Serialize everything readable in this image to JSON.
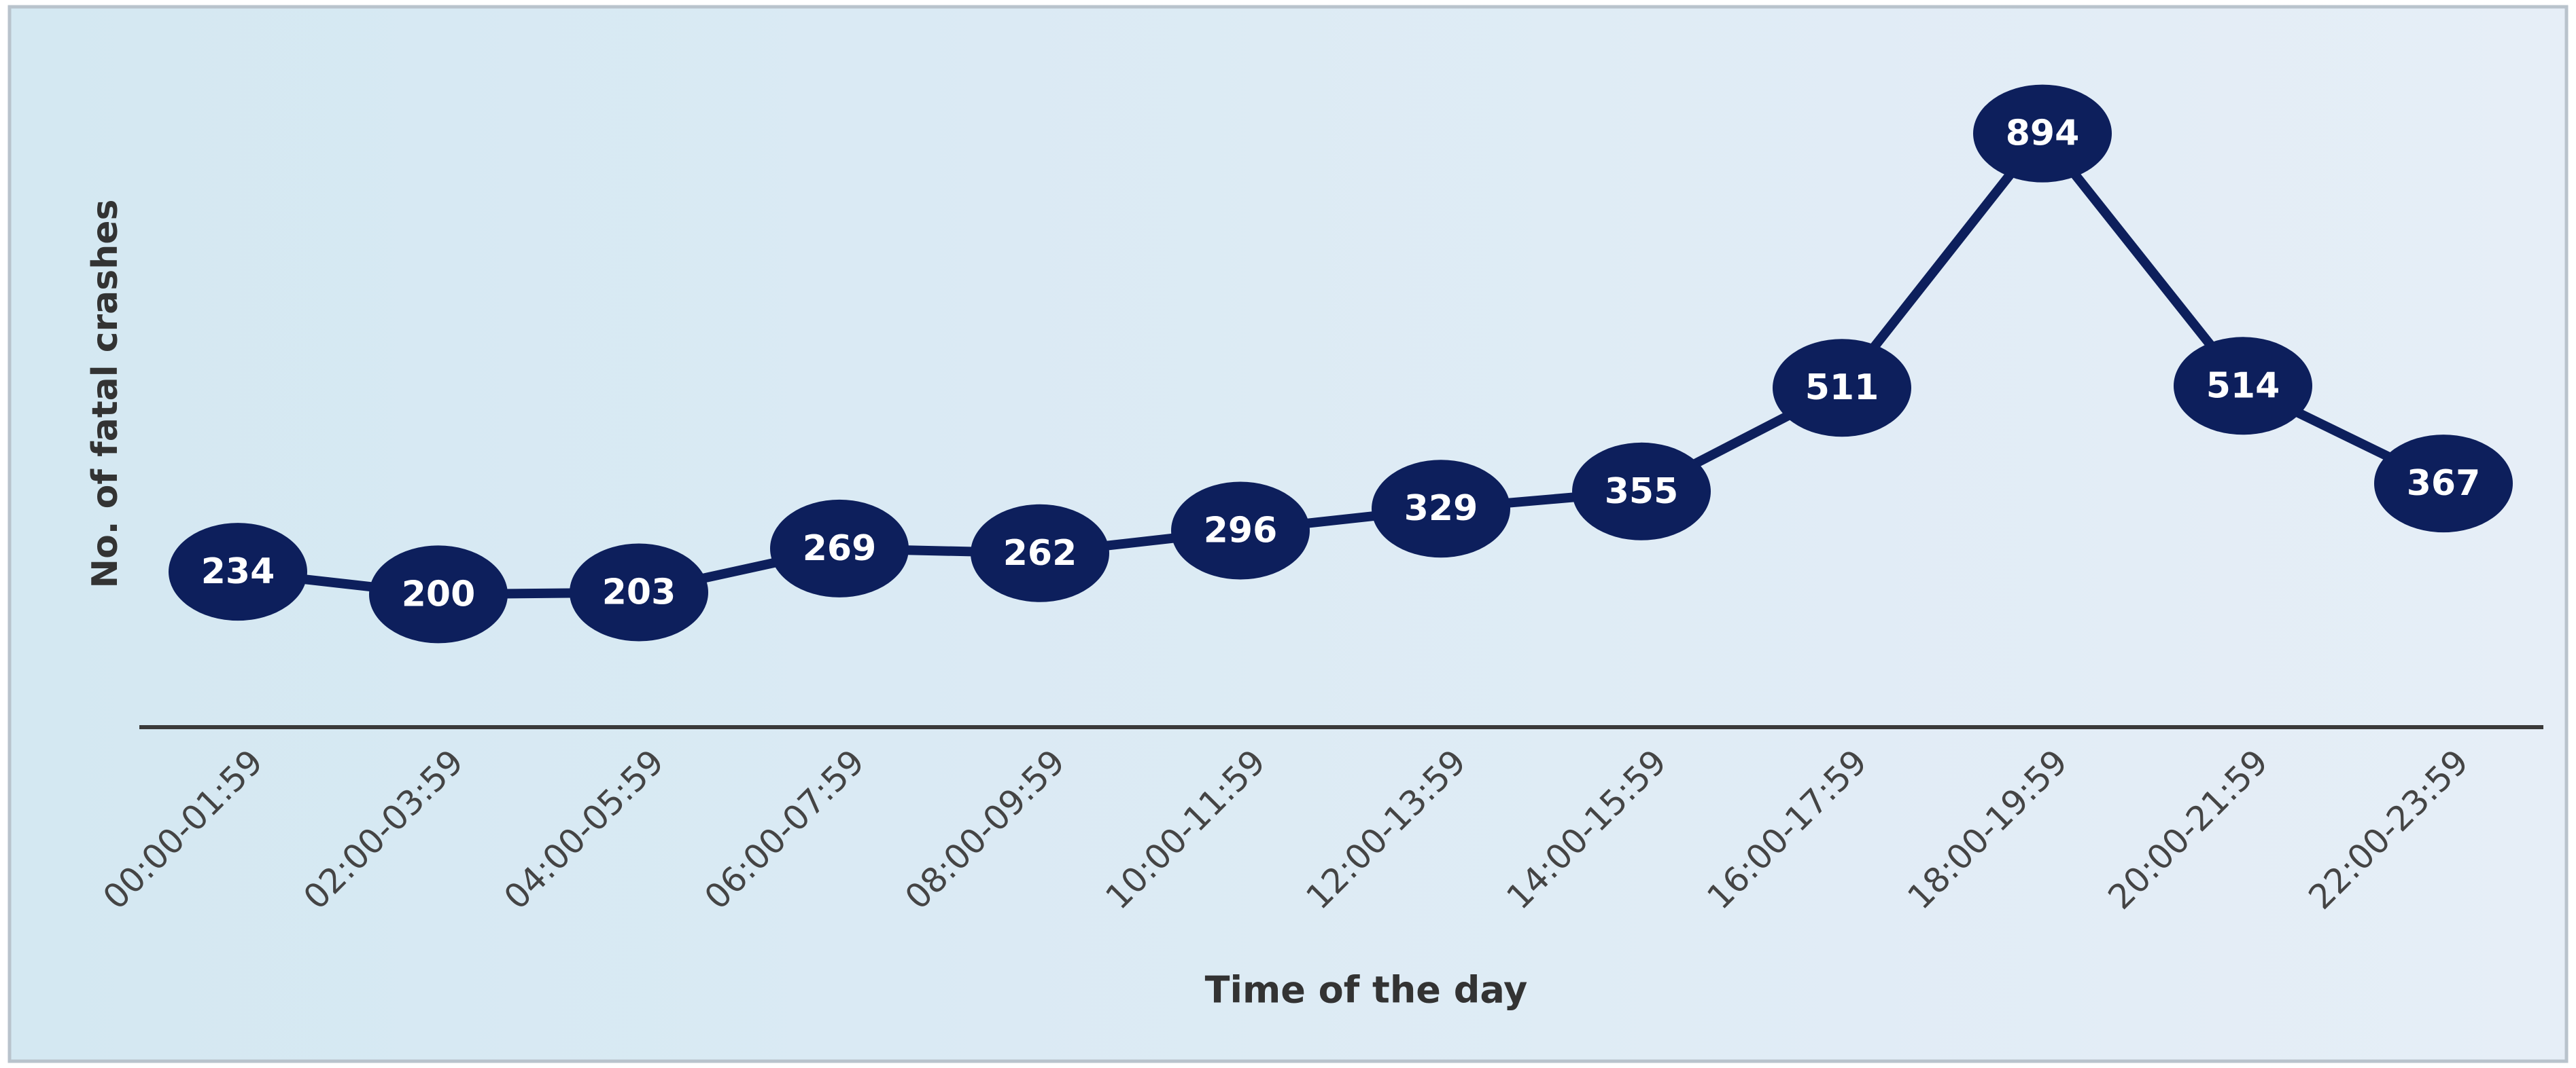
{
  "chart_data": {
    "type": "line",
    "x_label": "Time of the day",
    "y_label": "No. of fatal crashes",
    "categories": [
      "00:00-01:59",
      "02:00-03:59",
      "04:00-05:59",
      "06:00-07:59",
      "08:00-09:59",
      "10:00-11:59",
      "12:00-13:59",
      "14:00-15:59",
      "16:00-17:59",
      "18:00-19:59",
      "20:00-21:59",
      "22:00-23:59"
    ],
    "series": [
      {
        "color": "#0d1f5c",
        "values": [
          234,
          200,
          203,
          269,
          262,
          296,
          329,
          355,
          511,
          894,
          514,
          367
        ]
      }
    ],
    "ylim": [
      0,
      1000
    ]
  }
}
